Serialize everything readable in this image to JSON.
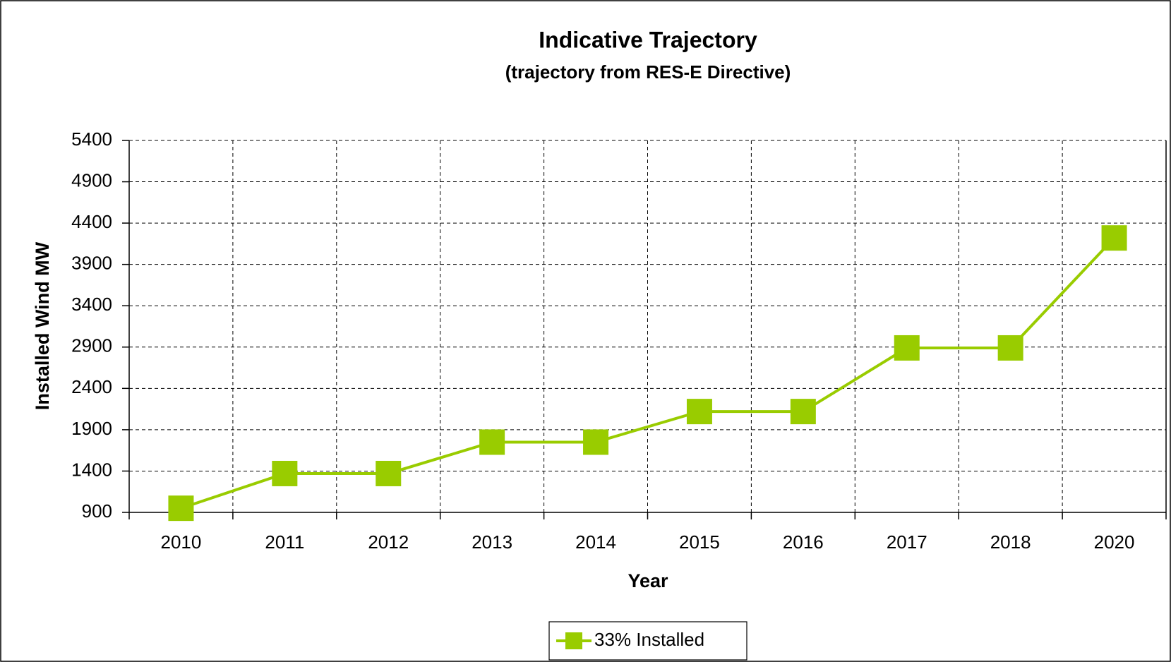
{
  "chart_data": {
    "type": "line",
    "title": "Indicative Trajectory",
    "subtitle": "(trajectory from RES-E Directive)",
    "x_label": "Year",
    "y_label": "Installed Wind MW",
    "categories": [
      "2010",
      "2011",
      "2012",
      "2013",
      "2014",
      "2015",
      "2016",
      "2017",
      "2018",
      "2020"
    ],
    "series": [
      {
        "name": "33% Installed",
        "color": "#99cc00",
        "values": [
          950,
          1370,
          1370,
          1750,
          1750,
          2120,
          2120,
          2890,
          2890,
          4220
        ]
      }
    ],
    "ylim": [
      900,
      5400
    ],
    "yticks": [
      900,
      1400,
      1900,
      2400,
      2900,
      3400,
      3900,
      4400,
      4900,
      5400
    ],
    "grid": true,
    "legend": "bottom"
  }
}
